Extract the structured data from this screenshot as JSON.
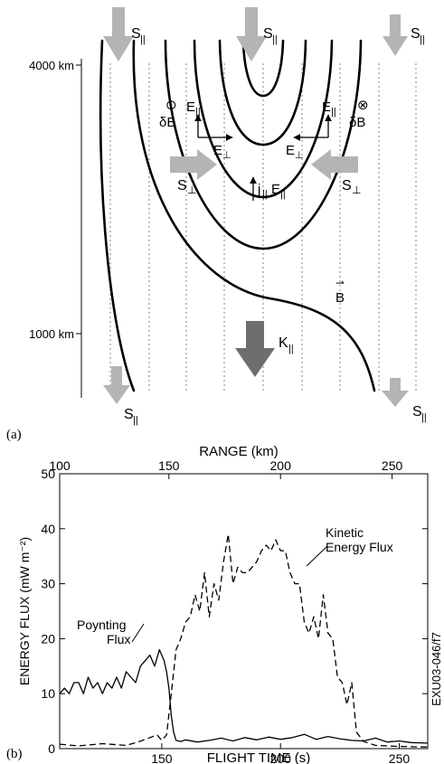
{
  "panel_a": {
    "label": "(a)",
    "altitude_top": "4000 km",
    "altitude_bottom": "1000 km",
    "s_par": "S",
    "s_par_sub": "||",
    "s_perp": "S",
    "s_perp_sub": "⊥",
    "e_par": "E",
    "e_par_sub": "||",
    "e_perp": "E",
    "e_perp_sub": "⊥",
    "j_par": "j",
    "j_par_sub": "||",
    "k_par": "K",
    "k_par_sub": "||",
    "delta_b": "δB",
    "dot_symbol": "⊙",
    "cross_symbol": "⊗",
    "b_field": "B",
    "b_vector_mark": "⇀",
    "arrow_color": "#b4b4b4",
    "dark_arrow_color": "#6e6e6e"
  },
  "panel_b": {
    "label": "(b)",
    "watermark": "EXU03-046/f7",
    "annotation_poynting_1": "Poynting",
    "annotation_poynting_2": "Flux",
    "annotation_kinetic_1": "Kinetic",
    "annotation_kinetic_2": "Energy Flux"
  },
  "chart_data": {
    "type": "line",
    "title": "",
    "xlabel": "FLIGHT TIME (s)",
    "x2label": "RANGE (km)",
    "ylabel": "ENERGY FLUX (mW m⁻²)",
    "xlim": [
      107,
      262
    ],
    "ylim": [
      0,
      50
    ],
    "x_ticks": [
      150,
      200,
      250
    ],
    "x2_ticks": [
      100,
      150,
      200,
      250
    ],
    "x2_tick_positions": [
      107,
      153,
      200,
      247
    ],
    "y_ticks": [
      0,
      10,
      20,
      30,
      40,
      50
    ],
    "grid": false,
    "series": [
      {
        "name": "Poynting Flux",
        "style": "solid",
        "x": [
          107,
          109,
          111,
          113,
          115,
          117,
          119,
          121,
          123,
          125,
          127,
          129,
          131,
          133,
          135,
          137,
          139,
          141,
          143,
          145,
          147,
          149,
          151,
          152,
          153,
          154,
          155,
          156,
          158,
          160,
          165,
          170,
          175,
          180,
          185,
          190,
          195,
          200,
          205,
          210,
          215,
          220,
          225,
          230,
          235,
          240,
          245,
          250,
          255,
          262
        ],
        "y": [
          10,
          11,
          10,
          12,
          12,
          10,
          13,
          11,
          12,
          10,
          12,
          11,
          13,
          11,
          14,
          13,
          12,
          15,
          16,
          17,
          15,
          18,
          16,
          14,
          11,
          6,
          3,
          1.5,
          1.3,
          1.6,
          1.2,
          1.5,
          1.9,
          1.4,
          2.0,
          1.6,
          2.1,
          1.7,
          2.0,
          2.6,
          1.7,
          2.2,
          1.8,
          1.5,
          1.4,
          1.9,
          1.2,
          1.4,
          1.1,
          1.0
        ]
      },
      {
        "name": "Kinetic Energy Flux",
        "style": "dashed",
        "x": [
          107,
          115,
          125,
          135,
          140,
          145,
          148,
          150,
          152,
          154,
          156,
          158,
          160,
          162,
          164,
          166,
          168,
          170,
          172,
          174,
          176,
          178,
          180,
          182,
          184,
          186,
          188,
          190,
          192,
          194,
          196,
          198,
          200,
          202,
          204,
          206,
          208,
          210,
          212,
          214,
          216,
          218,
          220,
          222,
          224,
          226,
          228,
          230,
          232,
          235,
          240,
          250,
          262
        ],
        "y": [
          0.8,
          0.5,
          0.9,
          0.6,
          1.2,
          2.0,
          2.5,
          1.5,
          2.5,
          10,
          18,
          20,
          23,
          24,
          28,
          25,
          32,
          24,
          30,
          27,
          34,
          39,
          30,
          33,
          32,
          32,
          33,
          34,
          36,
          37,
          36,
          38,
          36,
          36,
          32,
          30,
          30,
          23,
          21,
          24,
          20,
          28,
          21,
          20,
          13,
          12,
          8,
          12,
          3,
          1.3,
          0.6,
          0.4,
          0.3
        ]
      }
    ]
  }
}
